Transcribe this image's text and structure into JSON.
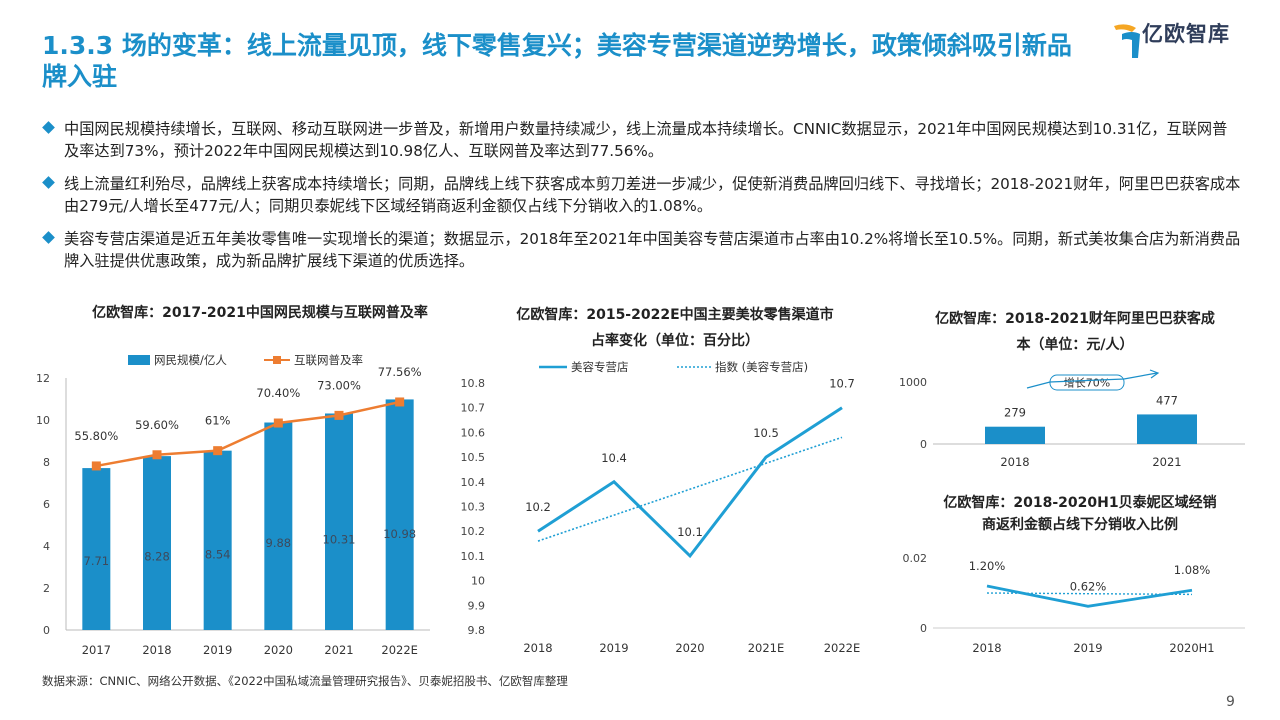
{
  "header": {
    "title": "1.3.3 场的变革：线上流量见顶，线下零售复兴；美容专营渠道逆势增长，政策倾斜吸引新品牌入驻",
    "logo_text": "亿欧智库",
    "logo_icon": "yiou-logo-icon"
  },
  "bullets": [
    "中国网民规模持续增长，互联网、移动互联网进一步普及，新增用户数量持续减少，线上流量成本持续增长。CNNIC数据显示，2021年中国网民规模达到10.31亿，互联网普及率达到73%，预计2022年中国网民规模达到10.98亿人、互联网普及率达到77.56%。",
    "线上流量红利殆尽，品牌线上获客成本持续增长；同期，品牌线上线下获客成本剪刀差进一步减少，促使新消费品牌回归线下、寻找增长；2018-2021财年，阿里巴巴获客成本由279元/人增长至477元/人；同期贝泰妮线下区域经销商返利金额仅占线下分销收入的1.08%。",
    "美容专营店渠道是近五年美妆零售唯一实现增长的渠道；数据显示，2018年至2021年中国美容专营店渠道市占率由10.2%将增长至10.5%。同期，新式美妆集合店为新消费品牌入驻提供优惠政策，成为新品牌扩展线下渠道的优质选择。"
  ],
  "colors": {
    "accent": "#1b8fc9",
    "orange": "#ed7d31",
    "line": "#1f9fd4"
  },
  "chart_data": [
    {
      "type": "bar",
      "title": "亿欧智库：2017-2021中国网民规模与互联网普及率",
      "categories": [
        "2017",
        "2018",
        "2019",
        "2020",
        "2021",
        "2022E"
      ],
      "series": [
        {
          "name": "网民规模/亿人",
          "type": "bar",
          "values": [
            7.71,
            8.28,
            8.54,
            9.88,
            10.31,
            10.98
          ],
          "labels": [
            "7.71",
            "8.28",
            "8.54",
            "9.88",
            "10.31",
            "10.98"
          ]
        },
        {
          "name": "互联网普及率",
          "type": "line",
          "values": [
            55.8,
            59.6,
            61,
            70.4,
            73,
            77.56
          ],
          "labels": [
            "55.80%",
            "59.60%",
            "61%",
            "70.40%",
            "73.00%",
            "77.56%"
          ]
        }
      ],
      "ylim": [
        0,
        12
      ],
      "yticks": [
        "0",
        "2",
        "4",
        "6",
        "8",
        "10",
        "12"
      ],
      "legend": "top"
    },
    {
      "type": "line",
      "title": "亿欧智库：2015-2022E中国主要美妆零售渠道市占率变化（单位：百分比）",
      "categories": [
        "2018",
        "2019",
        "2020",
        "2021E",
        "2022E"
      ],
      "series": [
        {
          "name": "美容专营店",
          "values": [
            10.2,
            10.4,
            10.1,
            10.5,
            10.7
          ],
          "labels": [
            "10.2",
            "10.4",
            "10.1",
            "10.5",
            "10.7"
          ]
        },
        {
          "name": "指数 (美容专营店)",
          "style": "dotted",
          "trend": [
            10.16,
            10.58
          ]
        }
      ],
      "ylim": [
        9.8,
        10.8
      ],
      "yticks": [
        "9.8",
        "9.9",
        "10",
        "10.1",
        "10.2",
        "10.3",
        "10.4",
        "10.5",
        "10.6",
        "10.7",
        "10.8"
      ],
      "legend": "top"
    },
    {
      "type": "bar",
      "title": "亿欧智库：2018-2021财年阿里巴巴获客成本（单位：元/人）",
      "categories": [
        "2018",
        "2021"
      ],
      "values": [
        279,
        477
      ],
      "labels": [
        "279",
        "477"
      ],
      "ylim": [
        0,
        1000
      ],
      "yticks": [
        "0",
        "1000"
      ],
      "annotation": "增长70%"
    },
    {
      "type": "line",
      "title": "亿欧智库：2018-2020H1贝泰妮区域经销商返利金额占线下分销收入比例",
      "categories": [
        "2018",
        "2019",
        "2020H1"
      ],
      "values": [
        1.2,
        0.62,
        1.08
      ],
      "labels": [
        "1.20%",
        "0.62%",
        "1.08%"
      ],
      "ylim": [
        0,
        2
      ],
      "yticks": [
        "0",
        "0.02"
      ],
      "trend_style": "dotted"
    }
  ],
  "footer": {
    "source": "数据来源：CNNIC、网络公开数据、《2022中国私域流量管理研究报告》、贝泰妮招股书、亿欧智库整理",
    "page": "9"
  }
}
